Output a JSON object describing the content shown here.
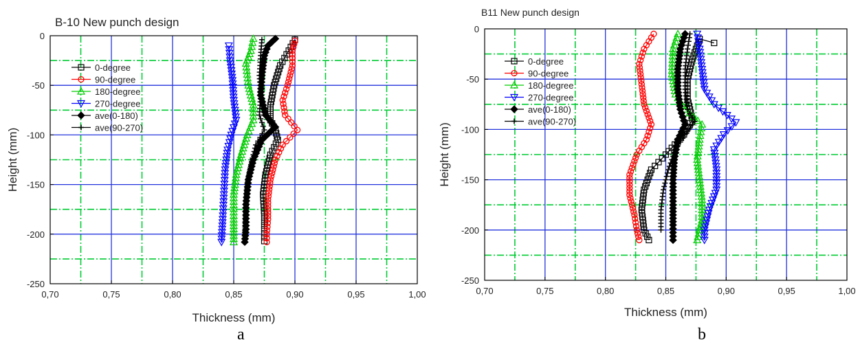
{
  "chart_data": [
    {
      "type": "line",
      "title": "B-10 New punch design",
      "xlabel": "Thickness (mm)",
      "ylabel": "Height (mm)",
      "xlim": [
        0.7,
        1.0
      ],
      "ylim": [
        -250,
        0
      ],
      "xticks": [
        "0,70",
        "0,75",
        "0,80",
        "0,85",
        "0,90",
        "0,95",
        "1,00"
      ],
      "yticks": [
        "0",
        "-50",
        "-100",
        "-150",
        "-200",
        "-250"
      ],
      "grid": true,
      "legend": "top-left",
      "panel_label": "a",
      "series": [
        {
          "name": "0-degree",
          "color": "#000000",
          "marker": "square-open",
          "points": [
            [
              0.9,
              -4
            ],
            [
              0.895,
              -15
            ],
            [
              0.888,
              -30
            ],
            [
              0.883,
              -50
            ],
            [
              0.88,
              -70
            ],
            [
              0.88,
              -85
            ],
            [
              0.884,
              -95
            ],
            [
              0.886,
              -105
            ],
            [
              0.88,
              -120
            ],
            [
              0.876,
              -140
            ],
            [
              0.874,
              -160
            ],
            [
              0.875,
              -180
            ],
            [
              0.875,
              -195
            ],
            [
              0.875,
              -207
            ]
          ]
        },
        {
          "name": "90-degree",
          "color": "#ff0000",
          "marker": "circle-open",
          "points": [
            [
              0.9,
              -5
            ],
            [
              0.898,
              -15
            ],
            [
              0.898,
              -30
            ],
            [
              0.894,
              -50
            ],
            [
              0.89,
              -65
            ],
            [
              0.892,
              -80
            ],
            [
              0.902,
              -95
            ],
            [
              0.89,
              -110
            ],
            [
              0.884,
              -125
            ],
            [
              0.88,
              -145
            ],
            [
              0.878,
              -165
            ],
            [
              0.878,
              -185
            ],
            [
              0.877,
              -200
            ],
            [
              0.877,
              -208
            ]
          ]
        },
        {
          "name": "180-degree",
          "color": "#00cc00",
          "marker": "triangle-up-open",
          "points": [
            [
              0.866,
              -3
            ],
            [
              0.864,
              -15
            ],
            [
              0.86,
              -28
            ],
            [
              0.862,
              -50
            ],
            [
              0.866,
              -70
            ],
            [
              0.866,
              -85
            ],
            [
              0.861,
              -100
            ],
            [
              0.856,
              -120
            ],
            [
              0.852,
              -140
            ],
            [
              0.85,
              -160
            ],
            [
              0.85,
              -185
            ],
            [
              0.85,
              -208
            ]
          ]
        },
        {
          "name": "270-degree",
          "color": "#0000ff",
          "marker": "triangle-down-open",
          "points": [
            [
              0.846,
              -10
            ],
            [
              0.847,
              -25
            ],
            [
              0.849,
              -45
            ],
            [
              0.85,
              -65
            ],
            [
              0.852,
              -85
            ],
            [
              0.848,
              -100
            ],
            [
              0.845,
              -115
            ],
            [
              0.843,
              -135
            ],
            [
              0.842,
              -160
            ],
            [
              0.841,
              -185
            ],
            [
              0.84,
              -208
            ]
          ]
        },
        {
          "name": "ave(0-180)",
          "color": "#000000",
          "marker": "diamond-filled",
          "points": [
            [
              0.884,
              -3
            ],
            [
              0.878,
              -10
            ],
            [
              0.875,
              -20
            ],
            [
              0.873,
              -40
            ],
            [
              0.872,
              -60
            ],
            [
              0.876,
              -80
            ],
            [
              0.884,
              -92
            ],
            [
              0.873,
              -105
            ],
            [
              0.866,
              -125
            ],
            [
              0.862,
              -145
            ],
            [
              0.86,
              -170
            ],
            [
              0.86,
              -195
            ],
            [
              0.859,
              -208
            ]
          ]
        },
        {
          "name": "ave(90-270)",
          "color": "#000000",
          "marker": "plus",
          "points": [
            [
              0.873,
              -4
            ],
            [
              0.872,
              -20
            ],
            [
              0.871,
              -40
            ],
            [
              0.872,
              -60
            ],
            [
              0.871,
              -80
            ],
            [
              0.875,
              -95
            ],
            [
              0.868,
              -110
            ],
            [
              0.864,
              -130
            ],
            [
              0.861,
              -150
            ],
            [
              0.86,
              -175
            ],
            [
              0.859,
              -200
            ],
            [
              0.859,
              -208
            ]
          ]
        }
      ]
    },
    {
      "type": "line",
      "title": "B11 New punch design",
      "xlabel": "Thickness (mm)",
      "ylabel": "Height (mm)",
      "xlim": [
        0.7,
        1.0
      ],
      "ylim": [
        -250,
        0
      ],
      "xticks": [
        "0,70",
        "0,75",
        "0,80",
        "0,85",
        "0,90",
        "0,95",
        "1,00"
      ],
      "yticks": [
        "0",
        "-50",
        "-100",
        "-150",
        "-200",
        "-250"
      ],
      "grid": true,
      "legend": "top-left",
      "panel_label": "b",
      "series": [
        {
          "name": "0-degree",
          "color": "#000000",
          "marker": "square-open",
          "points": [
            [
              0.89,
              -14
            ],
            [
              0.878,
              -10
            ],
            [
              0.872,
              -30
            ],
            [
              0.868,
              -50
            ],
            [
              0.868,
              -70
            ],
            [
              0.872,
              -90
            ],
            [
              0.865,
              -105
            ],
            [
              0.85,
              -125
            ],
            [
              0.838,
              -140
            ],
            [
              0.832,
              -160
            ],
            [
              0.83,
              -180
            ],
            [
              0.832,
              -200
            ],
            [
              0.836,
              -210
            ]
          ]
        },
        {
          "name": "90-degree",
          "color": "#ff0000",
          "marker": "circle-open",
          "points": [
            [
              0.84,
              -5
            ],
            [
              0.832,
              -20
            ],
            [
              0.828,
              -35
            ],
            [
              0.83,
              -55
            ],
            [
              0.832,
              -75
            ],
            [
              0.838,
              -95
            ],
            [
              0.834,
              -110
            ],
            [
              0.826,
              -125
            ],
            [
              0.82,
              -145
            ],
            [
              0.82,
              -165
            ],
            [
              0.824,
              -185
            ],
            [
              0.826,
              -200
            ],
            [
              0.828,
              -210
            ]
          ]
        },
        {
          "name": "180-degree",
          "color": "#00cc00",
          "marker": "triangle-up-open",
          "points": [
            [
              0.86,
              -5
            ],
            [
              0.856,
              -20
            ],
            [
              0.855,
              -45
            ],
            [
              0.858,
              -65
            ],
            [
              0.866,
              -80
            ],
            [
              0.88,
              -95
            ],
            [
              0.878,
              -110
            ],
            [
              0.876,
              -130
            ],
            [
              0.878,
              -150
            ],
            [
              0.88,
              -170
            ],
            [
              0.88,
              -190
            ],
            [
              0.876,
              -210
            ]
          ]
        },
        {
          "name": "270-degree",
          "color": "#0000ff",
          "marker": "triangle-down-open",
          "points": [
            [
              0.876,
              -5
            ],
            [
              0.878,
              -20
            ],
            [
              0.88,
              -40
            ],
            [
              0.882,
              -60
            ],
            [
              0.89,
              -75
            ],
            [
              0.908,
              -93
            ],
            [
              0.898,
              -105
            ],
            [
              0.89,
              -120
            ],
            [
              0.892,
              -140
            ],
            [
              0.892,
              -160
            ],
            [
              0.886,
              -180
            ],
            [
              0.882,
              -200
            ],
            [
              0.882,
              -210
            ]
          ]
        },
        {
          "name": "ave(0-180)",
          "color": "#000000",
          "marker": "diamond-filled",
          "points": [
            [
              0.866,
              -5
            ],
            [
              0.862,
              -20
            ],
            [
              0.86,
              -40
            ],
            [
              0.86,
              -60
            ],
            [
              0.862,
              -80
            ],
            [
              0.866,
              -95
            ],
            [
              0.86,
              -110
            ],
            [
              0.857,
              -130
            ],
            [
              0.856,
              -150
            ],
            [
              0.856,
              -175
            ],
            [
              0.856,
              -195
            ],
            [
              0.856,
              -210
            ]
          ]
        },
        {
          "name": "ave(90-270)",
          "color": "#000000",
          "marker": "plus",
          "points": [
            [
              0.87,
              -5
            ],
            [
              0.868,
              -20
            ],
            [
              0.866,
              -40
            ],
            [
              0.866,
              -60
            ],
            [
              0.868,
              -80
            ],
            [
              0.874,
              -92
            ],
            [
              0.866,
              -105
            ],
            [
              0.858,
              -120
            ],
            [
              0.852,
              -140
            ],
            [
              0.848,
              -160
            ],
            [
              0.846,
              -180
            ],
            [
              0.846,
              -200
            ]
          ]
        }
      ]
    }
  ]
}
